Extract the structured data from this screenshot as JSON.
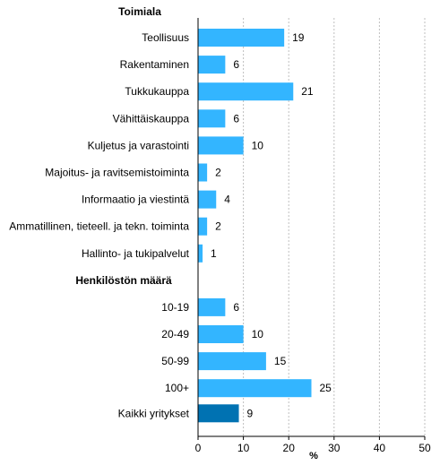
{
  "chart_data": {
    "type": "bar",
    "orientation": "horizontal",
    "xlabel": "%",
    "xlim": [
      0,
      50
    ],
    "xticks": [
      0,
      10,
      20,
      30,
      40,
      50
    ],
    "grid": true,
    "colors": {
      "bar": "#33b5ff",
      "highlight": "#0072b2"
    },
    "groups": [
      {
        "title": "Toimiala",
        "items": [
          {
            "label": "Teollisuus",
            "value": 19
          },
          {
            "label": "Rakentaminen",
            "value": 6
          },
          {
            "label": "Tukkukauppa",
            "value": 21
          },
          {
            "label": "Vähittäiskauppa",
            "value": 6
          },
          {
            "label": "Kuljetus ja varastointi",
            "value": 10
          },
          {
            "label": "Majoitus- ja ravitsemistoiminta",
            "value": 2
          },
          {
            "label": "Informaatio ja viestintä",
            "value": 4
          },
          {
            "label": "Ammatillinen, tieteell. ja tekn. toiminta",
            "value": 2
          },
          {
            "label": "Hallinto- ja tukipalvelut",
            "value": 1
          }
        ]
      },
      {
        "title": "Henkilöstön määrä",
        "items": [
          {
            "label": "10-19",
            "value": 6
          },
          {
            "label": "20-49",
            "value": 10
          },
          {
            "label": "50-99",
            "value": 15
          },
          {
            "label": "100+",
            "value": 25
          }
        ]
      },
      {
        "title": "",
        "items": [
          {
            "label": "Kaikki yritykset",
            "value": 9,
            "highlight": true
          }
        ]
      }
    ]
  }
}
